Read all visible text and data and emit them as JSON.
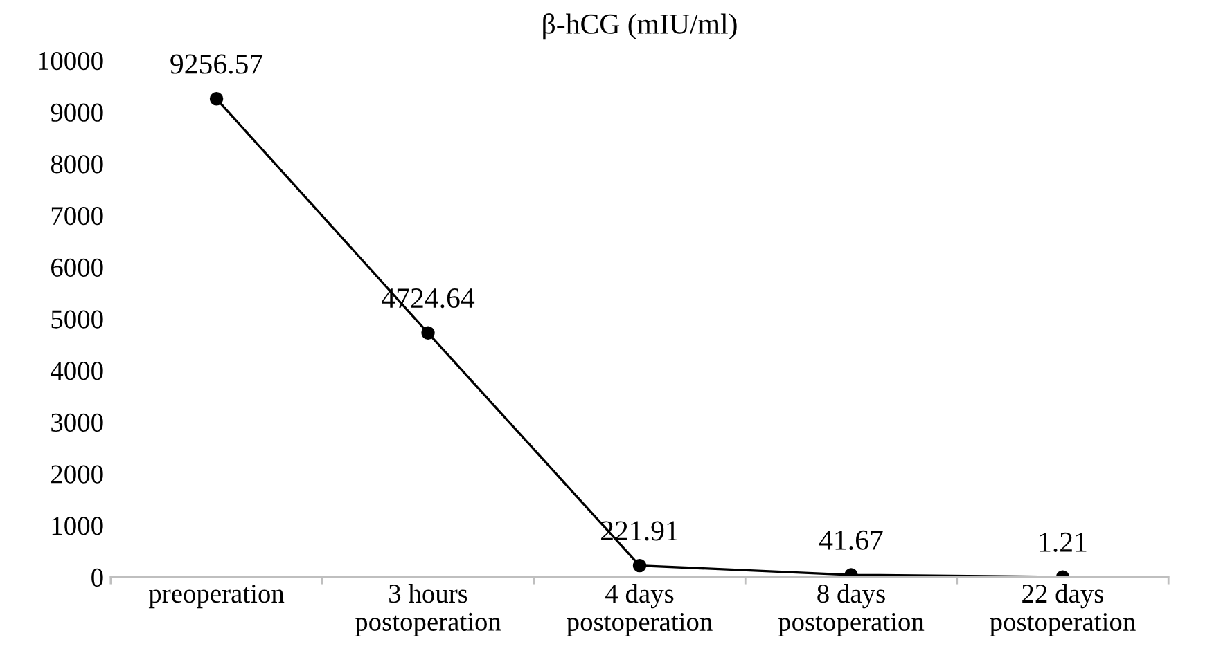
{
  "chart_data": {
    "type": "line",
    "title": "β-hCG (mIU/ml)",
    "categories": [
      "preoperation",
      "3 hours\npostoperation",
      "4 days\npostoperation",
      "8 days\npostoperation",
      "22 days\npostoperation"
    ],
    "series": [
      {
        "color": "#000000",
        "values": [
          9256.57,
          4724.64,
          221.91,
          41.67,
          1.21
        ]
      }
    ],
    "data_labels": true,
    "marker": "circle",
    "line_style": "solid",
    "ylim": [
      0,
      10000
    ],
    "yticks": [
      0,
      1000,
      2000,
      3000,
      4000,
      5000,
      6000,
      7000,
      8000,
      9000,
      10000
    ],
    "grid": false,
    "legend": false
  }
}
